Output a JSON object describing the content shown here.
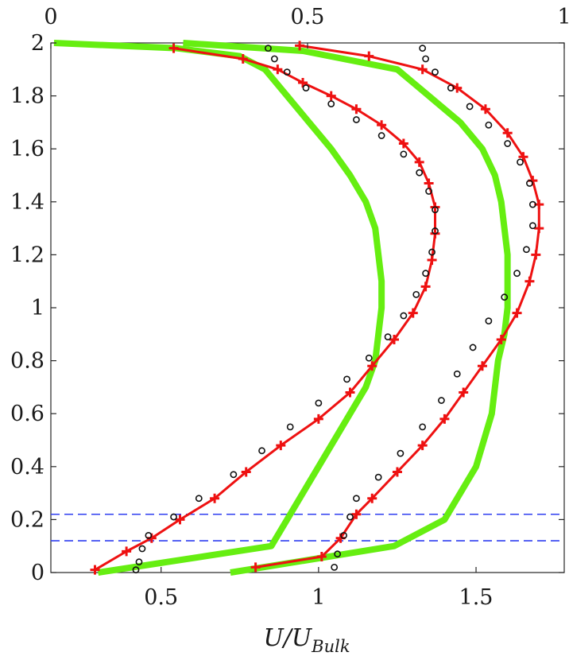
{
  "chart_data": {
    "type": "line",
    "xlabel": "U/U_Bulk",
    "xlabel_main": "U/U",
    "xlabel_sub": "Bulk",
    "bottom_axis": {
      "range": [
        0.15,
        1.78
      ],
      "ticks": [
        0.5,
        1,
        1.5
      ],
      "tick_labels": [
        "0.5",
        "1",
        "1.5"
      ]
    },
    "top_axis": {
      "range": [
        0.0,
        1.0
      ],
      "ticks": [
        0,
        0.5,
        1
      ],
      "tick_labels": [
        "0",
        "0.5",
        "1"
      ]
    },
    "y_axis": {
      "range": [
        0,
        2
      ],
      "ticks": [
        0,
        0.2,
        0.4,
        0.6,
        0.8,
        1,
        1.2,
        1.4,
        1.6,
        1.8,
        2
      ],
      "tick_labels": [
        "0",
        "0.2",
        "0.4",
        "0.6",
        "0.8",
        "1",
        "1.2",
        "1.4",
        "1.6",
        "1.8",
        "2"
      ]
    },
    "grid": false,
    "hlines": [
      {
        "y": 0.22,
        "color": "#2f3ff0",
        "style": "dashed"
      },
      {
        "y": 0.12,
        "color": "#2f3ff0",
        "style": "dashed"
      }
    ],
    "series": [
      {
        "style": "line",
        "color": "#66ee11",
        "x": [
          0.16,
          0.55,
          0.75,
          0.83,
          0.9,
          0.97,
          1.04,
          1.1,
          1.15,
          1.18,
          1.19,
          1.2,
          1.2,
          1.19,
          1.18,
          1.15,
          1.1,
          1.0,
          0.9,
          0.85,
          0.3
        ],
        "y": [
          2.0,
          1.98,
          1.95,
          1.9,
          1.8,
          1.7,
          1.6,
          1.5,
          1.4,
          1.3,
          1.2,
          1.1,
          1.0,
          0.9,
          0.8,
          0.7,
          0.6,
          0.4,
          0.2,
          0.1,
          0.0
        ]
      },
      {
        "style": "line",
        "color": "#66ee11",
        "x": [
          0.57,
          0.95,
          1.25,
          1.35,
          1.45,
          1.52,
          1.56,
          1.58,
          1.59,
          1.6,
          1.6,
          1.59,
          1.57,
          1.55,
          1.5,
          1.4,
          1.24,
          0.72
        ],
        "y": [
          2.0,
          1.97,
          1.9,
          1.8,
          1.7,
          1.6,
          1.5,
          1.4,
          1.3,
          1.2,
          1.0,
          0.9,
          0.8,
          0.6,
          0.4,
          0.2,
          0.1,
          0.0
        ]
      },
      {
        "style": "line-marker",
        "marker": "plus",
        "color": "#ee1111",
        "x": [
          0.54,
          0.76,
          0.87,
          0.95,
          1.04,
          1.12,
          1.2,
          1.27,
          1.32,
          1.35,
          1.37,
          1.37,
          1.36,
          1.34,
          1.3,
          1.24,
          1.17,
          1.1,
          1.0,
          0.88,
          0.77,
          0.67,
          0.56,
          0.47,
          0.39,
          0.29
        ],
        "y": [
          1.98,
          1.94,
          1.9,
          1.85,
          1.8,
          1.75,
          1.69,
          1.62,
          1.55,
          1.47,
          1.38,
          1.28,
          1.18,
          1.08,
          0.98,
          0.88,
          0.78,
          0.68,
          0.58,
          0.48,
          0.38,
          0.28,
          0.2,
          0.13,
          0.08,
          0.01
        ]
      },
      {
        "style": "line-marker",
        "marker": "plus",
        "color": "#ee1111",
        "x": [
          0.94,
          1.16,
          1.33,
          1.44,
          1.53,
          1.6,
          1.65,
          1.68,
          1.7,
          1.7,
          1.69,
          1.67,
          1.63,
          1.58,
          1.52,
          1.46,
          1.4,
          1.33,
          1.25,
          1.17,
          1.12,
          1.07,
          1.01,
          0.8
        ],
        "y": [
          1.99,
          1.95,
          1.9,
          1.83,
          1.75,
          1.66,
          1.57,
          1.48,
          1.39,
          1.3,
          1.2,
          1.1,
          0.98,
          0.88,
          0.78,
          0.68,
          0.58,
          0.48,
          0.38,
          0.28,
          0.22,
          0.13,
          0.06,
          0.02
        ]
      },
      {
        "style": "markers",
        "marker": "circle",
        "color": "#111111",
        "x": [
          0.84,
          0.86,
          0.9,
          0.96,
          1.04,
          1.12,
          1.2,
          1.27,
          1.32,
          1.35,
          1.37,
          1.37,
          1.36,
          1.34,
          1.31,
          1.27,
          1.22,
          1.16,
          1.09,
          1.0,
          0.91,
          0.82,
          0.73,
          0.62,
          0.54,
          0.46,
          0.44,
          0.43,
          0.42
        ],
        "y": [
          1.98,
          1.94,
          1.89,
          1.83,
          1.77,
          1.71,
          1.65,
          1.58,
          1.51,
          1.44,
          1.37,
          1.29,
          1.21,
          1.13,
          1.05,
          0.97,
          0.89,
          0.81,
          0.73,
          0.64,
          0.55,
          0.46,
          0.37,
          0.28,
          0.21,
          0.14,
          0.09,
          0.04,
          0.01
        ]
      },
      {
        "style": "markers",
        "marker": "circle",
        "color": "#111111",
        "x": [
          1.33,
          1.34,
          1.37,
          1.42,
          1.48,
          1.54,
          1.6,
          1.64,
          1.67,
          1.68,
          1.68,
          1.66,
          1.63,
          1.59,
          1.54,
          1.49,
          1.44,
          1.39,
          1.33,
          1.26,
          1.19,
          1.12,
          1.1,
          1.08,
          1.06,
          1.05
        ],
        "y": [
          1.98,
          1.94,
          1.89,
          1.83,
          1.76,
          1.69,
          1.62,
          1.55,
          1.47,
          1.39,
          1.31,
          1.22,
          1.13,
          1.04,
          0.95,
          0.85,
          0.75,
          0.65,
          0.55,
          0.45,
          0.36,
          0.28,
          0.21,
          0.14,
          0.07,
          0.02
        ]
      }
    ]
  }
}
